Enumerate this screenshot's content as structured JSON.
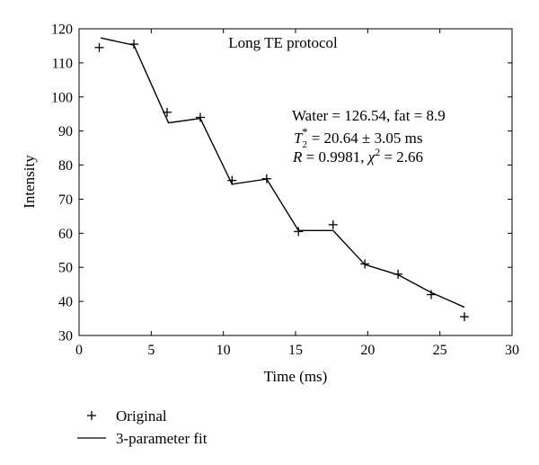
{
  "chart_data": {
    "type": "line",
    "annotation_title": "Long TE protocol",
    "xlabel": "Time (ms)",
    "ylabel": "Intensity",
    "xlim": [
      0,
      30
    ],
    "ylim": [
      30,
      120
    ],
    "xticks": [
      "0",
      "5",
      "10",
      "15",
      "20",
      "25",
      "30"
    ],
    "yticks": [
      "30",
      "40",
      "50",
      "60",
      "70",
      "80",
      "90",
      "100",
      "110",
      "120"
    ],
    "grid": false,
    "legend_position": "below",
    "stats": {
      "line1": "Water = 126.54, fat = 8.9",
      "t2_symbol": "T",
      "t2_sub": "2",
      "t2_sup": "*",
      "t2_value": " = 20.64 ± 3.05 ms",
      "r_symbol": "R",
      "r_value": " = 0.9981, ",
      "chi_symbol": "χ",
      "chi_sup": "2",
      "chi_value": " = 2.66"
    },
    "series": [
      {
        "name": "Original",
        "marker": "+",
        "points": [
          [
            1.4,
            114.5
          ],
          [
            3.8,
            115.5
          ],
          [
            6.1,
            95.5
          ],
          [
            8.4,
            94.0
          ],
          [
            10.6,
            75.5
          ],
          [
            13.0,
            76.0
          ],
          [
            15.2,
            60.5
          ],
          [
            17.6,
            62.5
          ],
          [
            19.8,
            51.0
          ],
          [
            22.1,
            48.0
          ],
          [
            24.4,
            42.0
          ],
          [
            26.7,
            35.5
          ]
        ]
      },
      {
        "name": "3-parameter fit",
        "style": "solid",
        "points": [
          [
            1.5,
            117.3
          ],
          [
            3.8,
            115.2
          ],
          [
            6.2,
            92.4
          ],
          [
            8.4,
            93.7
          ],
          [
            10.6,
            74.4
          ],
          [
            13.0,
            75.9
          ],
          [
            15.2,
            60.8
          ],
          [
            17.6,
            60.8
          ],
          [
            19.8,
            50.8
          ],
          [
            22.1,
            47.8
          ],
          [
            24.4,
            42.6
          ],
          [
            26.7,
            38.3
          ]
        ]
      }
    ]
  }
}
